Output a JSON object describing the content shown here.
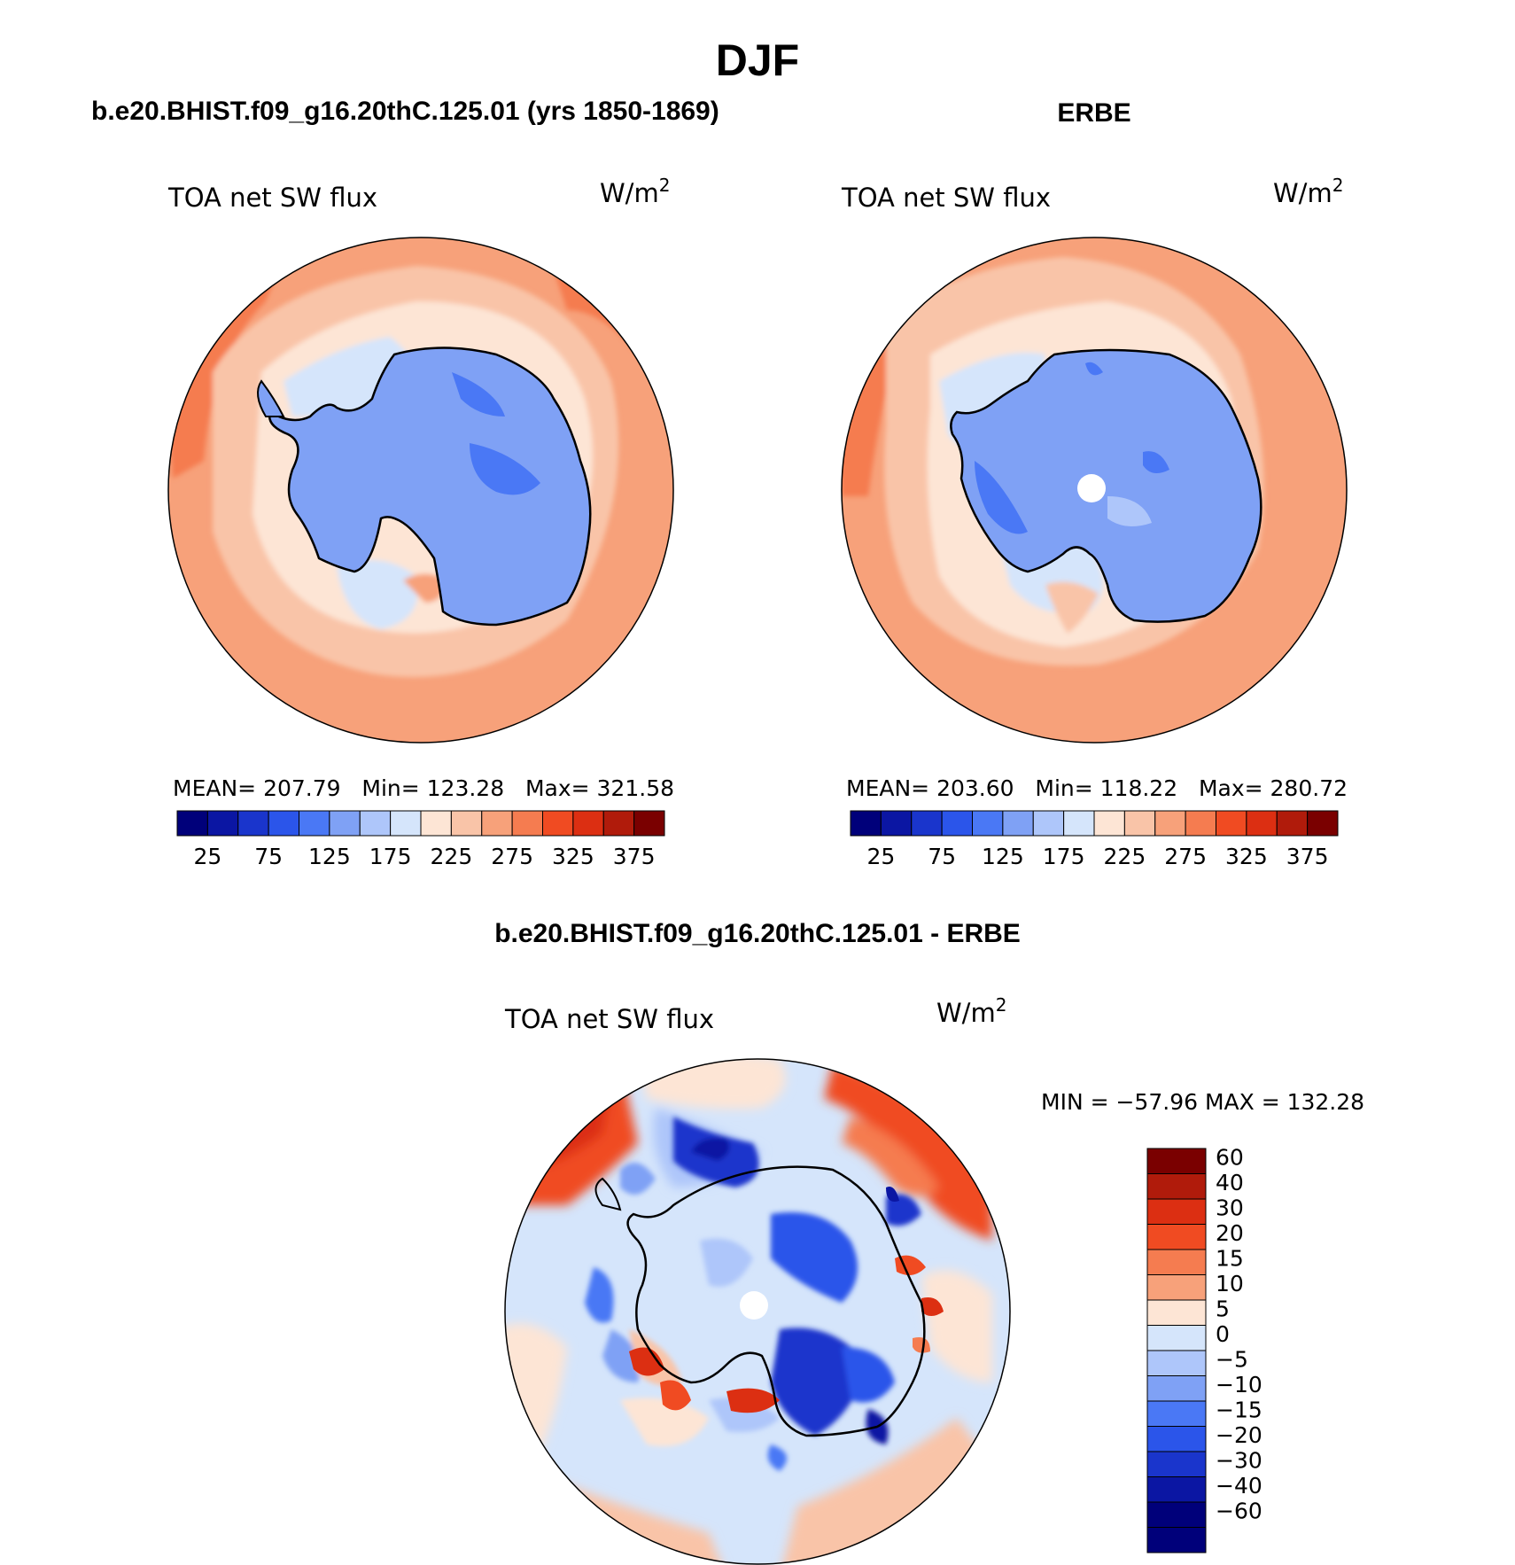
{
  "figure": {
    "title": "DJF",
    "panel1": {
      "heading": "b.e20.BHIST.f09_g16.20thC.125.01 (yrs 1850-1869)",
      "field": "TOA net SW flux",
      "unit_base": "W/m",
      "unit_exp": "2",
      "stats": "MEAN= 207.79   Min= 123.28   Max= 321.58"
    },
    "panel2": {
      "heading": "ERBE",
      "field": "TOA net SW flux",
      "unit_base": "W/m",
      "unit_exp": "2",
      "stats": "MEAN= 203.60   Min= 118.22   Max= 280.72"
    },
    "panel3": {
      "heading": "b.e20.BHIST.f09_g16.20thC.125.01 - ERBE",
      "field": "TOA net SW flux",
      "unit_base": "W/m",
      "unit_exp": "2",
      "minmax": "MIN = −57.96 MAX = 132.28"
    }
  },
  "chart_data": [
    {
      "type": "heatmap",
      "title": "b.e20.BHIST.f09_g16.20thC.125.01 (yrs 1850-1869)",
      "variable": "TOA net SW flux",
      "units": "W/m2",
      "projection": "south polar stereographic",
      "statistics": {
        "mean": 207.79,
        "min": 123.28,
        "max": 321.58
      },
      "colorbar": {
        "levels": [
          25,
          50,
          75,
          100,
          125,
          150,
          175,
          200,
          225,
          250,
          275,
          300,
          325,
          350,
          375
        ],
        "tick_labels": [
          "25",
          "75",
          "125",
          "175",
          "225",
          "275",
          "325",
          "375"
        ],
        "colors": [
          "#00007a",
          "#0b16a3",
          "#1a35cc",
          "#2b55ea",
          "#4a78f5",
          "#7fa1f5",
          "#aec6fa",
          "#d5e5fb",
          "#fde5d5",
          "#f9c4a8",
          "#f7a17a",
          "#f57c50",
          "#f04b22",
          "#dc2f12",
          "#b01b0b",
          "#7a0000"
        ]
      }
    },
    {
      "type": "heatmap",
      "title": "ERBE",
      "variable": "TOA net SW flux",
      "units": "W/m2",
      "projection": "south polar stereographic",
      "statistics": {
        "mean": 203.6,
        "min": 118.22,
        "max": 280.72
      },
      "colorbar": {
        "levels": [
          25,
          50,
          75,
          100,
          125,
          150,
          175,
          200,
          225,
          250,
          275,
          300,
          325,
          350,
          375
        ],
        "tick_labels": [
          "25",
          "75",
          "125",
          "175",
          "225",
          "275",
          "325",
          "375"
        ],
        "colors": [
          "#00007a",
          "#0b16a3",
          "#1a35cc",
          "#2b55ea",
          "#4a78f5",
          "#7fa1f5",
          "#aec6fa",
          "#d5e5fb",
          "#fde5d5",
          "#f9c4a8",
          "#f7a17a",
          "#f57c50",
          "#f04b22",
          "#dc2f12",
          "#b01b0b",
          "#7a0000"
        ]
      }
    },
    {
      "type": "heatmap",
      "title": "b.e20.BHIST.f09_g16.20thC.125.01 - ERBE",
      "variable": "TOA net SW flux",
      "units": "W/m2",
      "projection": "south polar stereographic",
      "statistics": {
        "min": -57.96,
        "max": 132.28
      },
      "colorbar": {
        "levels": [
          -60,
          -40,
          -30,
          -20,
          -15,
          -10,
          -5,
          0,
          5,
          10,
          15,
          20,
          30,
          40,
          60
        ],
        "tick_labels": [
          "60",
          "40",
          "30",
          "20",
          "15",
          "10",
          "5",
          "0",
          "−5",
          "−10",
          "−15",
          "−20",
          "−30",
          "−40",
          "−60"
        ],
        "colors_top_to_bottom": [
          "#7a0000",
          "#b01b0b",
          "#dc2f12",
          "#f04b22",
          "#f57c50",
          "#f7a17a",
          "#fde5d5",
          "#d5e5fb",
          "#aec6fa",
          "#7fa1f5",
          "#4a78f5",
          "#2b55ea",
          "#1a35cc",
          "#0b16a3",
          "#00007a",
          "#00007a"
        ]
      }
    }
  ]
}
